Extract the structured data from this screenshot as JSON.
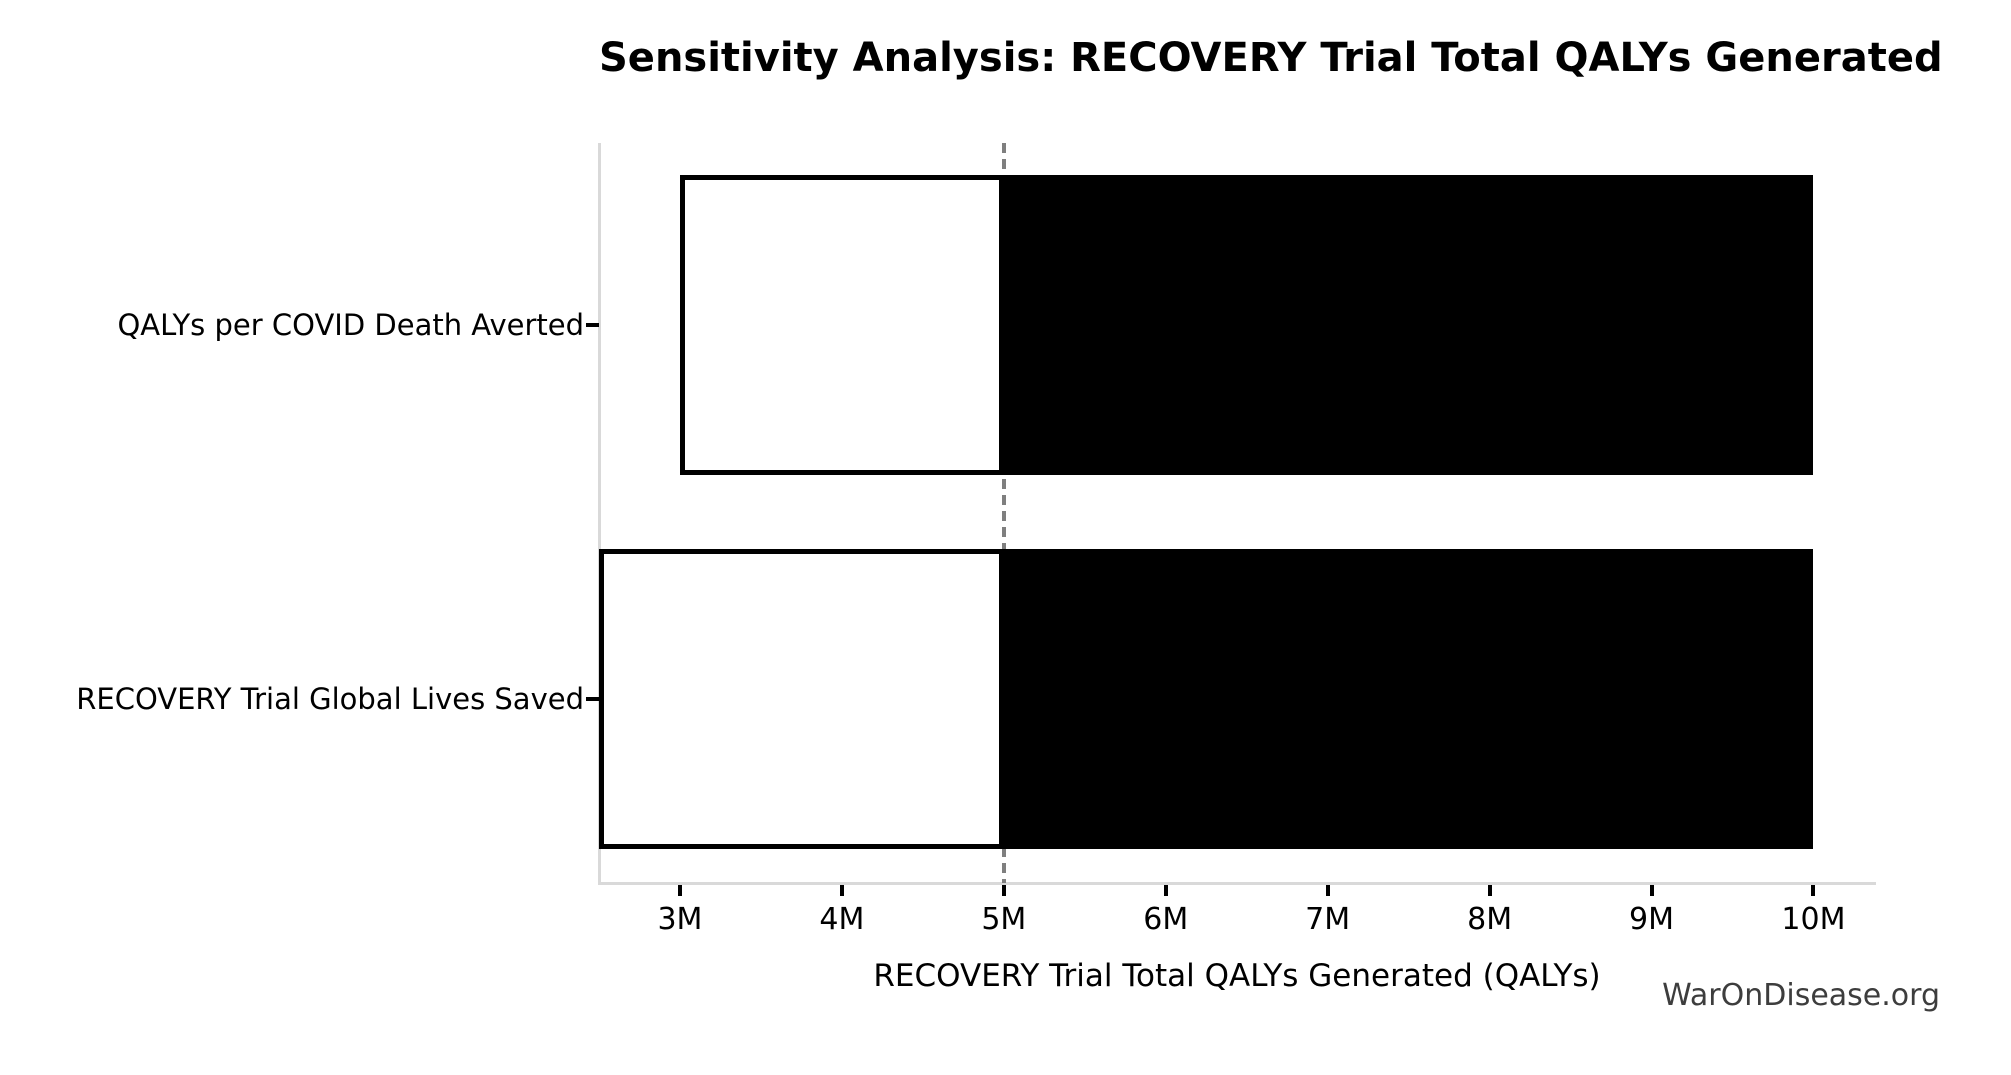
{
  "page": {
    "watermark": "WarOnDisease.org"
  },
  "chart_data": {
    "type": "bar",
    "subtype": "tornado-sensitivity",
    "orientation": "horizontal",
    "title": "Sensitivity Analysis: RECOVERY Trial Total QALYs Generated",
    "xlabel": "RECOVERY Trial Total QALYs Generated (QALYs)",
    "unit": "QALYs (millions)",
    "grid": false,
    "legend": null,
    "base_case_m": 5,
    "xlim_m": [
      2.5,
      10.38
    ],
    "x_ticks": [
      {
        "v": 3,
        "label": "3M"
      },
      {
        "v": 4,
        "label": "4M"
      },
      {
        "v": 5,
        "label": "5M"
      },
      {
        "v": 6,
        "label": "6M"
      },
      {
        "v": 7,
        "label": "7M"
      },
      {
        "v": 8,
        "label": "8M"
      },
      {
        "v": 9,
        "label": "9M"
      },
      {
        "v": 10,
        "label": "10M"
      }
    ],
    "rows": [
      {
        "label": "QALYs per COVID Death Averted",
        "low_m": 3,
        "base_m": 5,
        "high_m": 10
      },
      {
        "label": "RECOVERY Trial Global Lives Saved",
        "low_m": 2.5,
        "base_m": 5,
        "high_m": 10
      }
    ],
    "colors": {
      "below_base_fill": "#ffffff",
      "above_base_fill": "#000000",
      "bar_edge": "#000000",
      "base_case_line": "#7f7f7f",
      "spine": "#d9d9d9",
      "tick": "#000000",
      "text": "#000000",
      "watermark_text": "#3d3d3d",
      "background": "#ffffff"
    }
  }
}
